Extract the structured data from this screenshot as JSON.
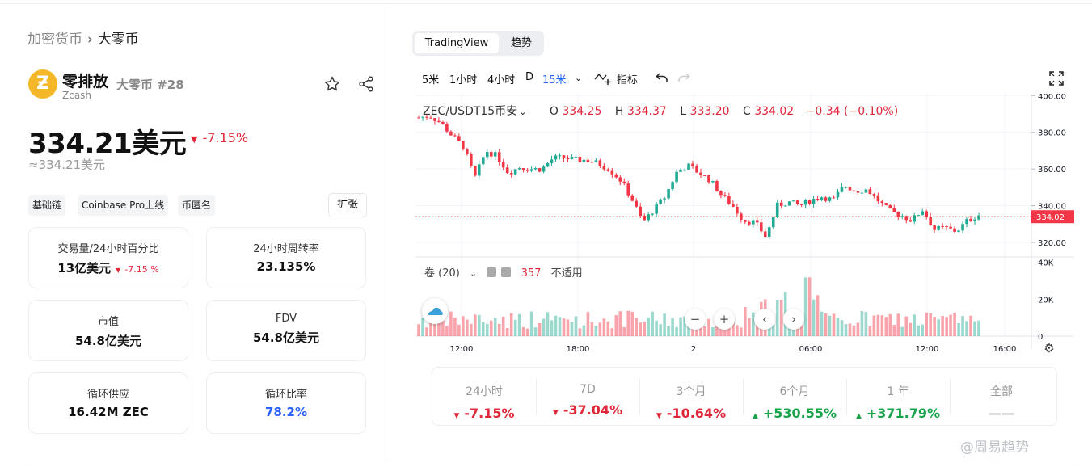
{
  "breadcrumb": {
    "parent": "加密货币",
    "separator": "›",
    "current": "大零币"
  },
  "coin": {
    "logo_icon": "zcash-logo",
    "logo_glyph": "Ƶ",
    "name": "零排放",
    "rank": "大零币 #28",
    "symbol": "Zcash",
    "price": "334.21美元",
    "change": "-7.15%",
    "price_alt": "≈334.21美元"
  },
  "tags": [
    "基础链",
    "Coinbase Pro上线",
    "币匿名"
  ],
  "expand_label": "扩张",
  "stats": [
    {
      "label": "交易量/24小时百分比",
      "value": "13亿美元",
      "sub": "-7.15 %"
    },
    {
      "label": "24小时周转率",
      "value": "23.135%"
    },
    {
      "label": "市值",
      "value": "54.8亿美元"
    },
    {
      "label": "FDV",
      "value": "54.8亿美元"
    },
    {
      "label": "循环供应",
      "value": "16.42M ZEC"
    },
    {
      "label": "循环比率",
      "value": "78.2%"
    }
  ],
  "chart_tabs": {
    "tradingview": "TradingView",
    "trend": "趋势"
  },
  "toolbar": {
    "intervals": [
      "5米",
      "1小时",
      "4小时",
      "D",
      "15米"
    ],
    "active_interval": "15米",
    "indicators": "指标"
  },
  "ohlc": {
    "symbol": "ZEC/USDT15币安",
    "o_label": "O",
    "o": "334.25",
    "h_label": "H",
    "h": "334.37",
    "l_label": "L",
    "l": "333.20",
    "c_label": "C",
    "c": "334.02",
    "change": "−0.34 (−0.10%)"
  },
  "volume_legend": {
    "label": "卷 (20)",
    "value": "357",
    "status": "不适用"
  },
  "colors": {
    "up": "#22ab94",
    "down": "#f23645",
    "accent": "#2962ff",
    "zcash": "#f4b728"
  },
  "chart_data": {
    "type": "candlestick",
    "x_ticks": [
      "12:00",
      "18:00",
      "2",
      "06:00",
      "12:00",
      "16:00"
    ],
    "y_ticks": [
      "400.00",
      "380.00",
      "360.00",
      "340.00",
      "320.00"
    ],
    "ylim": [
      313,
      401
    ],
    "last_price": "334.02",
    "last_price_value": 334.02,
    "close_path": [
      388,
      389,
      385,
      378,
      372,
      355,
      370,
      367,
      358,
      361,
      360,
      360,
      366,
      366,
      365,
      365,
      363,
      360,
      354,
      344,
      331,
      338,
      345,
      358,
      362,
      358,
      354,
      346,
      340,
      332,
      331,
      323,
      340,
      342,
      340,
      343,
      345,
      343,
      351,
      348,
      349,
      343,
      337,
      335,
      332,
      338,
      327,
      328,
      326,
      332,
      335
    ],
    "volume_ticks": [
      "40K",
      "20K",
      "0"
    ],
    "volume_ylim": [
      0,
      42000
    ]
  },
  "performance": [
    {
      "label": "24小时",
      "value": "-7.15%",
      "dir": "neg"
    },
    {
      "label": "7D",
      "value": "-37.04%",
      "dir": "neg"
    },
    {
      "label": "3个月",
      "value": "-10.64%",
      "dir": "neg"
    },
    {
      "label": "6个月",
      "value": "+530.55%",
      "dir": "pos"
    },
    {
      "label": "1 年",
      "value": "+371.79%",
      "dir": "pos"
    },
    {
      "label": "全部",
      "value": "——",
      "dir": "na"
    }
  ],
  "watermark": "@周易趋势"
}
